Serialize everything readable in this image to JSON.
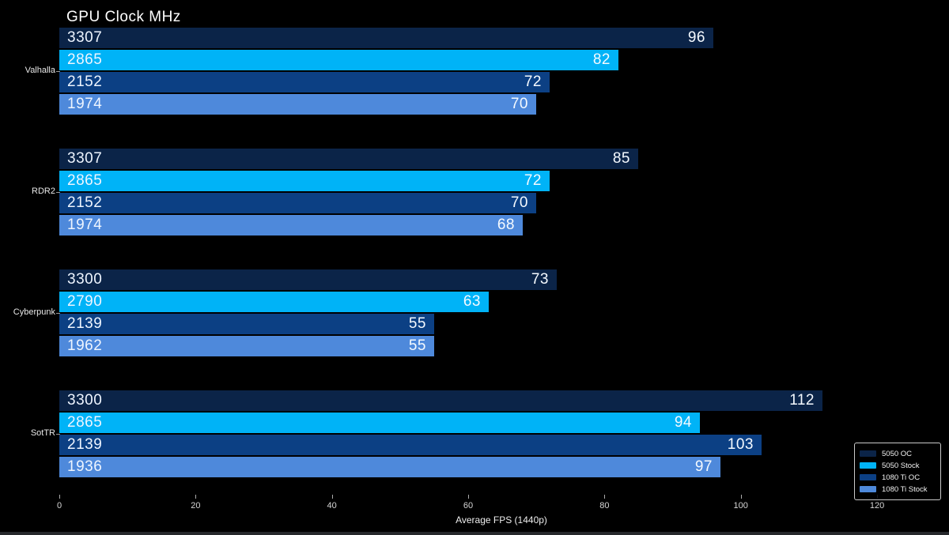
{
  "title": "GPU Clock MHz",
  "chart_data": {
    "type": "bar",
    "orientation": "horizontal",
    "title": "GPU Clock MHz",
    "xlabel": "Average FPS (1440p)",
    "categories": [
      "Valhalla",
      "RDR2",
      "Cyberpunk",
      "SotTR"
    ],
    "series": [
      {
        "name": "5050 OC",
        "color": "#0b2448",
        "values": [
          96,
          85,
          73,
          112
        ],
        "bar_labels": [
          "3307",
          "3307",
          "3300",
          "3300"
        ]
      },
      {
        "name": "5050 Stock",
        "color": "#00b3f7",
        "values": [
          82,
          72,
          63,
          94
        ],
        "bar_labels": [
          "2865",
          "2865",
          "2790",
          "2865"
        ]
      },
      {
        "name": "1080 Ti OC",
        "color": "#0c4084",
        "values": [
          72,
          70,
          55,
          103
        ],
        "bar_labels": [
          "2152",
          "2152",
          "2139",
          "2139"
        ]
      },
      {
        "name": "1080 Ti Stock",
        "color": "#4e89db",
        "values": [
          70,
          68,
          55,
          97
        ],
        "bar_labels": [
          "1974",
          "1974",
          "1962",
          "1936"
        ]
      }
    ],
    "xticks": [
      0,
      20,
      40,
      60,
      80,
      100,
      120
    ],
    "xlim": [
      0,
      130
    ],
    "grid": false,
    "legend_position": "lower right",
    "bar_label_meaning": "GPU clock MHz printed at left inside each bar; average FPS printed at right end of each bar"
  }
}
